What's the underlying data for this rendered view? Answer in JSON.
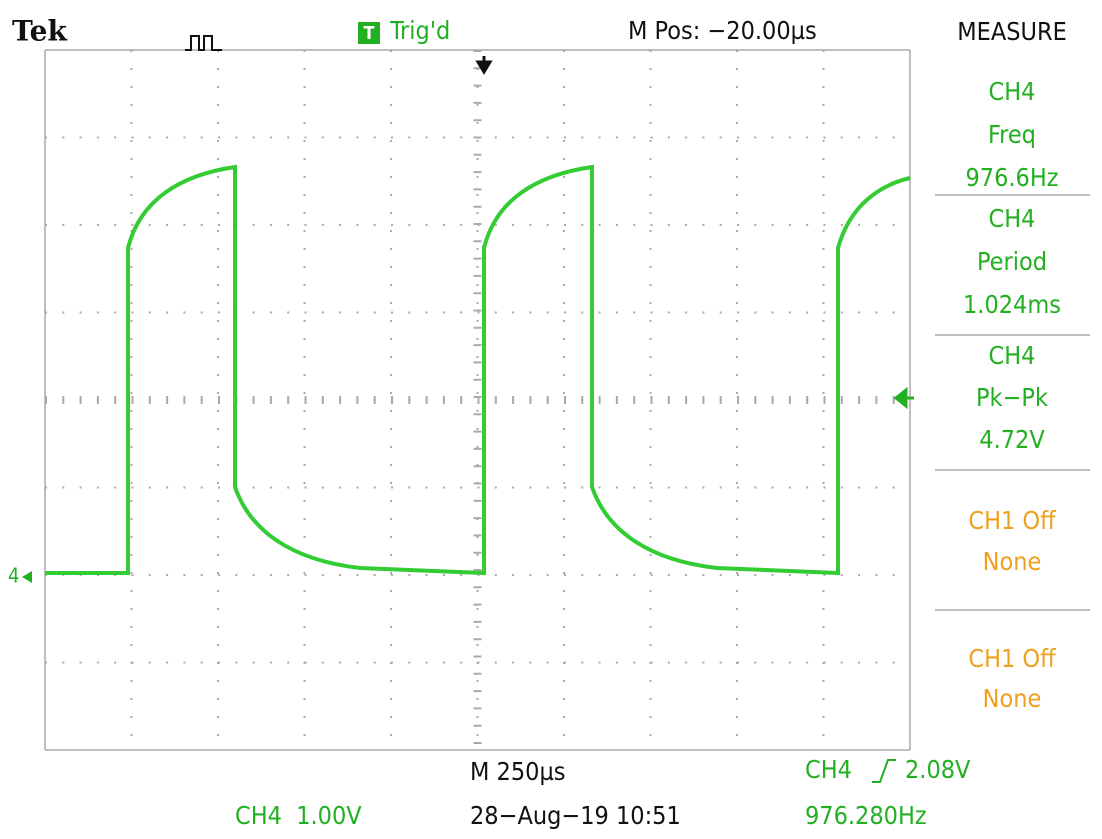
{
  "header": {
    "brand": "Tek",
    "trigger_badge": "T",
    "trigger_status": "Trig'd",
    "position": "M Pos: −20.00µs"
  },
  "channel_marker": "4",
  "measure": {
    "title": "MEASURE",
    "items": [
      {
        "lines": [
          "CH4",
          "Freq",
          "976.6Hz"
        ]
      },
      {
        "lines": [
          "CH4",
          "Period",
          "1.024ms"
        ]
      },
      {
        "lines": [
          "CH4",
          "Pk−Pk",
          "4.72V"
        ]
      },
      {
        "lines": [
          "CH1 Off",
          "None"
        ]
      },
      {
        "lines": [
          "CH1 Off",
          "None"
        ]
      }
    ]
  },
  "footer": {
    "timebase": "M 250µs",
    "trigger_source": "CH4",
    "trigger_level": "2.08V",
    "channel_scale": "CH4  1.00V",
    "datetime": "28−Aug−19 10:51",
    "trigger_freq": "976.280Hz"
  }
}
